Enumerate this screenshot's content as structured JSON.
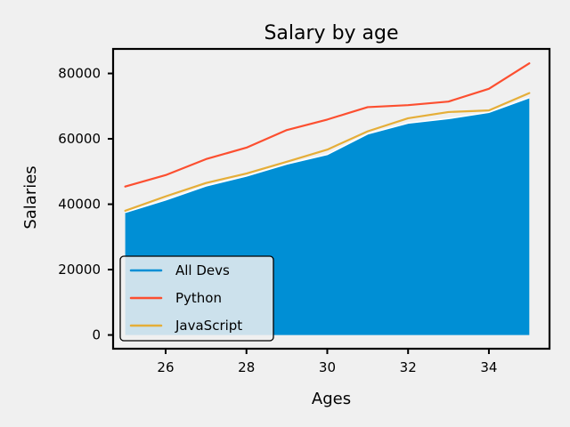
{
  "chart_data": {
    "type": "area",
    "title": "Salary by age",
    "xlabel": "Ages",
    "ylabel": "Salaries",
    "xlim": [
      24.7,
      35.5
    ],
    "ylim": [
      -4200,
      87500
    ],
    "xticks": [
      26,
      28,
      30,
      32,
      34
    ],
    "yticks": [
      0,
      20000,
      40000,
      60000,
      80000
    ],
    "grid": false,
    "legend_position": "lower-left",
    "x": [
      25,
      26,
      27,
      28,
      29,
      30,
      31,
      32,
      33,
      34,
      35
    ],
    "series": [
      {
        "name": "All Devs",
        "kind": "area",
        "color": "#008fd5",
        "values": [
          37500,
          41300,
          45600,
          48600,
          52300,
          55200,
          61500,
          64800,
          66200,
          68100,
          72600
        ]
      },
      {
        "name": "Python",
        "kind": "line",
        "color": "#fc4f30",
        "values": [
          45400,
          48900,
          53800,
          57300,
          62700,
          65900,
          69700,
          70300,
          71400,
          75300,
          83100
        ]
      },
      {
        "name": "JavaScript",
        "kind": "line",
        "color": "#e5ae38",
        "values": [
          38000,
          42400,
          46500,
          49400,
          53000,
          56700,
          62300,
          66300,
          68200,
          68700,
          74000
        ]
      }
    ]
  }
}
